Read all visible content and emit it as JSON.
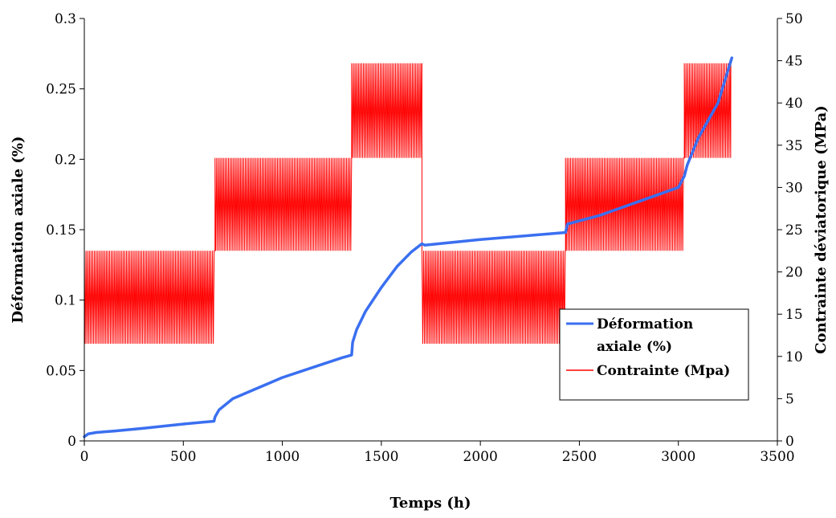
{
  "chart_data": {
    "type": "line",
    "xlabel": "Temps (h)",
    "ylabel_left": "Déformation axiale  (%)",
    "ylabel_right": "Contrainte déviatorique (MPa)",
    "xlim": [
      0,
      3500
    ],
    "ylim_left": [
      0,
      0.3
    ],
    "ylim_right": [
      0,
      50
    ],
    "x_ticks": [
      0,
      500,
      1000,
      1500,
      2000,
      2500,
      3000,
      3500
    ],
    "y_left_ticks": [
      0,
      0.05,
      0.1,
      0.15,
      0.2,
      0.25,
      0.3
    ],
    "y_right_ticks": [
      0,
      5,
      10,
      15,
      20,
      25,
      30,
      35,
      40,
      45,
      50
    ],
    "legend_position": "center-right",
    "series": [
      {
        "name": "Déformation axiale (%)",
        "axis": "left",
        "color": "#3a6ff0",
        "x": [
          0,
          20,
          60,
          150,
          300,
          500,
          655,
          660,
          680,
          750,
          850,
          1000,
          1150,
          1300,
          1350,
          1355,
          1375,
          1420,
          1500,
          1580,
          1650,
          1705,
          1720,
          2000,
          2430,
          2440,
          2600,
          2800,
          3000,
          3030,
          3045,
          3100,
          3200,
          3270
        ],
        "values": [
          0.003,
          0.005,
          0.006,
          0.007,
          0.009,
          0.012,
          0.014,
          0.017,
          0.022,
          0.03,
          0.036,
          0.045,
          0.052,
          0.059,
          0.061,
          0.07,
          0.079,
          0.092,
          0.109,
          0.124,
          0.134,
          0.14,
          0.139,
          0.143,
          0.148,
          0.154,
          0.16,
          0.17,
          0.18,
          0.188,
          0.196,
          0.215,
          0.24,
          0.272
        ]
      },
      {
        "name": "Contrainte (Mpa)",
        "axis": "right",
        "color": "#ff0000",
        "cycle_blocks": [
          {
            "start": 0,
            "end": 660,
            "min": 11.5,
            "max": 22.5
          },
          {
            "start": 660,
            "end": 1350,
            "min": 22.5,
            "max": 33.5
          },
          {
            "start": 1350,
            "end": 1705,
            "min": 33.5,
            "max": 44.7
          },
          {
            "start": 1705,
            "end": 2430,
            "min": 11.5,
            "max": 22.5
          },
          {
            "start": 2430,
            "end": 3030,
            "min": 22.5,
            "max": 33.5
          },
          {
            "start": 3030,
            "end": 3265,
            "min": 33.5,
            "max": 44.7
          }
        ]
      }
    ]
  }
}
